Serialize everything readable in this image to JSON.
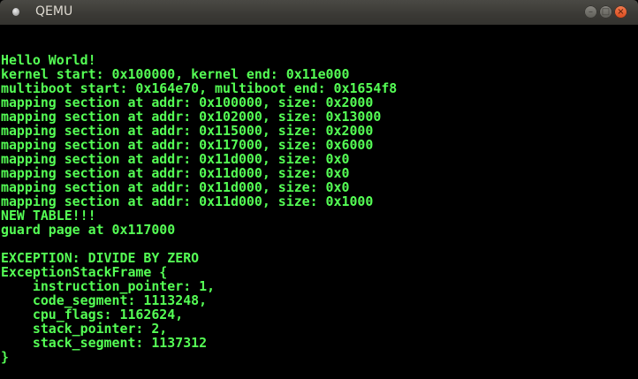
{
  "window": {
    "title": "QEMU",
    "buttons": {
      "minimize": "–",
      "maximize": "□",
      "close": "×"
    }
  },
  "console": {
    "text_color": "#55ff55",
    "background": "#000000",
    "lines": [
      "",
      "",
      "Hello World!",
      "kernel start: 0x100000, kernel end: 0x11e000",
      "multiboot start: 0x164e70, multiboot end: 0x1654f8",
      "mapping section at addr: 0x100000, size: 0x2000",
      "mapping section at addr: 0x102000, size: 0x13000",
      "mapping section at addr: 0x115000, size: 0x2000",
      "mapping section at addr: 0x117000, size: 0x6000",
      "mapping section at addr: 0x11d000, size: 0x0",
      "mapping section at addr: 0x11d000, size: 0x0",
      "mapping section at addr: 0x11d000, size: 0x0",
      "mapping section at addr: 0x11d000, size: 0x1000",
      "NEW TABLE!!!",
      "guard page at 0x117000",
      "",
      "EXCEPTION: DIVIDE BY ZERO",
      "ExceptionStackFrame {",
      "    instruction_pointer: 1,",
      "    code_segment: 1113248,",
      "    cpu_flags: 1162624,",
      "    stack_pointer: 2,",
      "    stack_segment: 1137312",
      "}"
    ]
  }
}
